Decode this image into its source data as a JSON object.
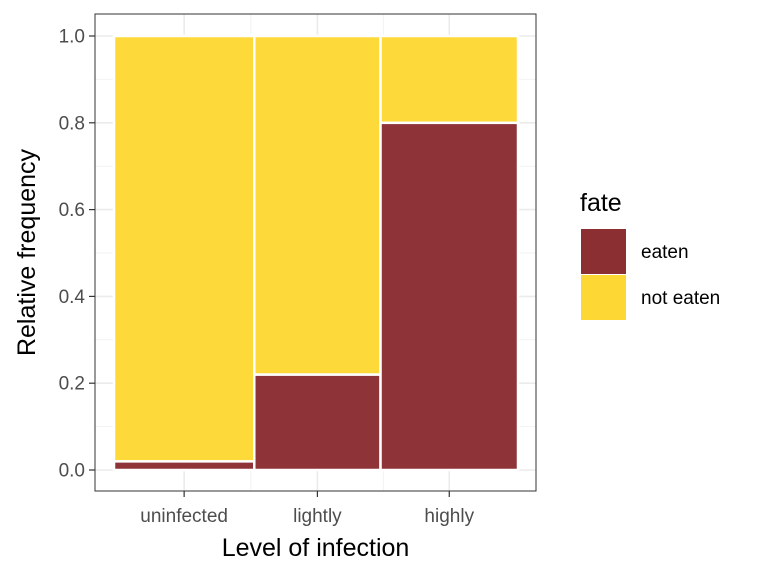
{
  "chart_data": {
    "type": "mosaic",
    "xlabel": "Level of infection",
    "ylabel": "Relative frequency",
    "ylim": [
      0,
      1
    ],
    "yticks": [
      "0.0",
      "0.2",
      "0.4",
      "0.6",
      "0.8",
      "1.0"
    ],
    "categories": [
      "uninfected",
      "lightly",
      "highly"
    ],
    "category_widths": [
      50,
      45,
      49
    ],
    "grid": true,
    "legend": {
      "title": "fate",
      "placement": "right",
      "entries": [
        {
          "label": "eaten",
          "color": "#8c2f33"
        },
        {
          "label": "not eaten",
          "color": "#fdd835"
        }
      ]
    },
    "series": [
      {
        "name": "eaten",
        "values": [
          0.02,
          0.22,
          0.8
        ]
      },
      {
        "name": "not eaten",
        "values": [
          0.98,
          0.78,
          0.2
        ]
      }
    ]
  }
}
